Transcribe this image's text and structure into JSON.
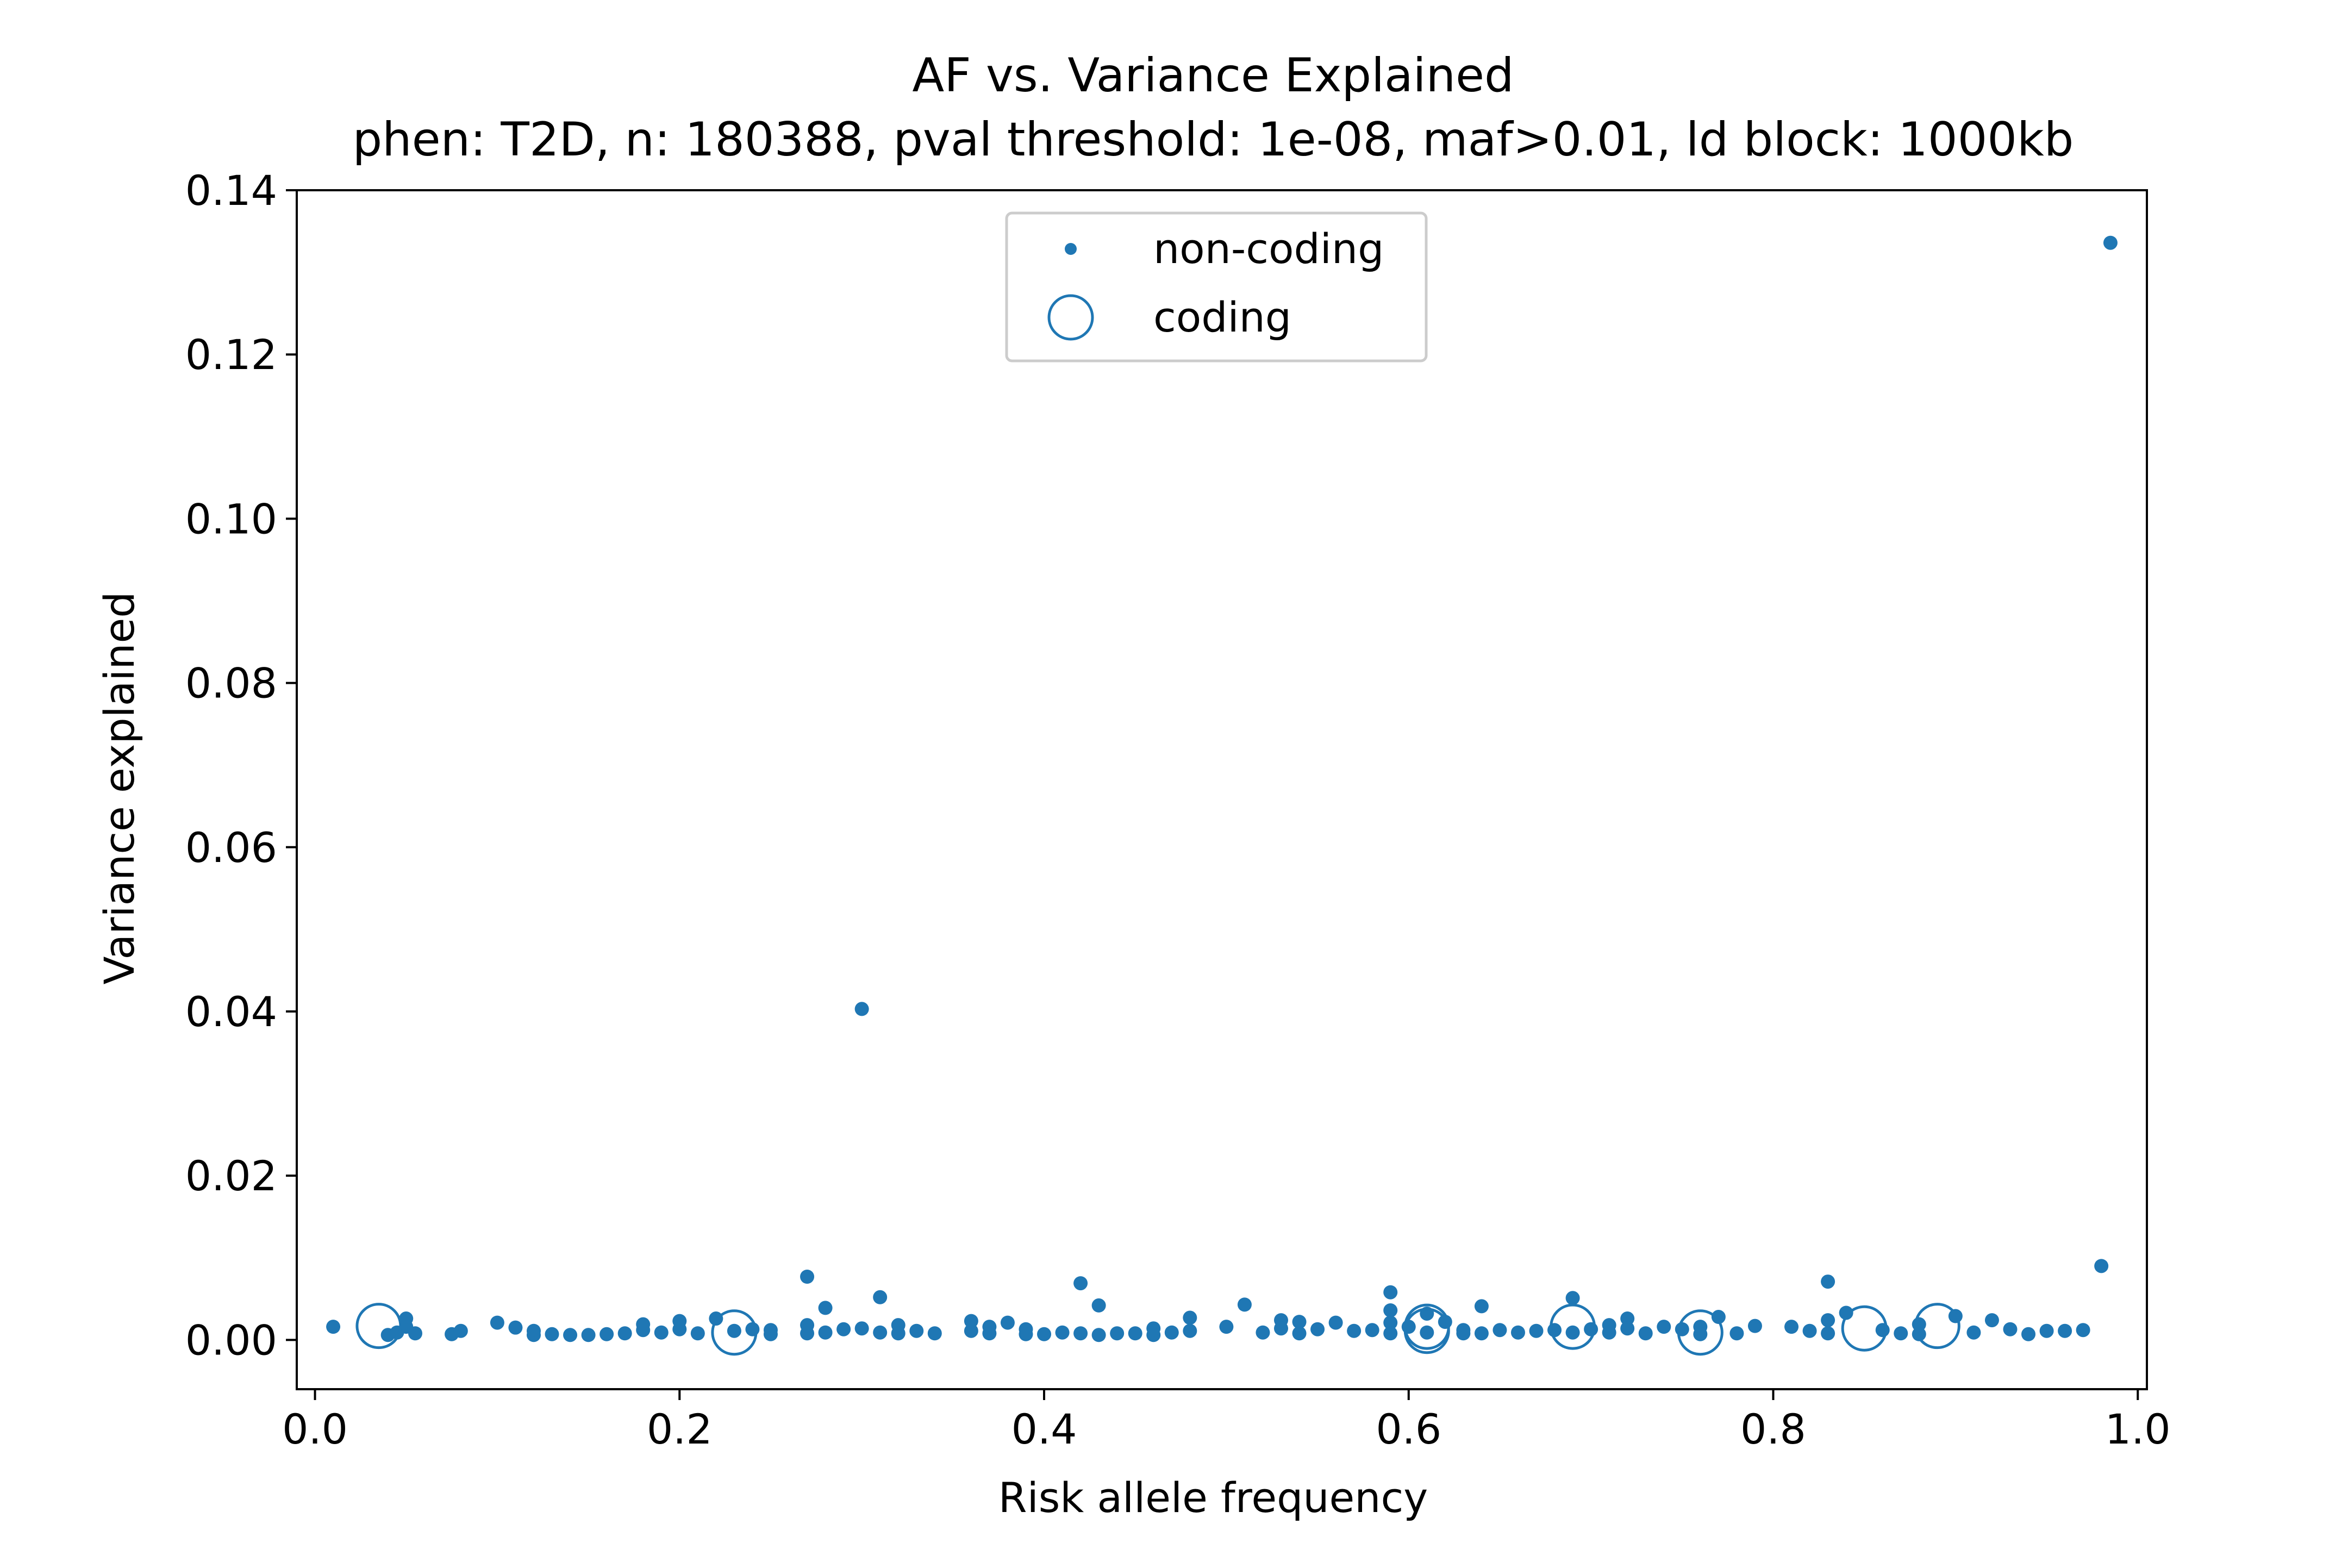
{
  "chart_data": {
    "type": "scatter",
    "title": "AF vs. Variance Explained",
    "subtitle": "phen: T2D, n: 180388, pval threshold: 1e-08, maf>0.01, ld block: 1000kb",
    "xlabel": "Risk allele frequency",
    "ylabel": "Variance explained",
    "xlim": [
      -0.01,
      1.005
    ],
    "ylim": [
      -0.006,
      0.14
    ],
    "xticks": [
      0.0,
      0.2,
      0.4,
      0.6,
      0.8,
      1.0
    ],
    "xtick_labels": [
      "0.0",
      "0.2",
      "0.4",
      "0.6",
      "0.8",
      "1.0"
    ],
    "yticks": [
      0.0,
      0.02,
      0.04,
      0.06,
      0.08,
      0.1,
      0.12,
      0.14
    ],
    "ytick_labels": [
      "0.00",
      "0.02",
      "0.04",
      "0.06",
      "0.08",
      "0.10",
      "0.12",
      "0.14"
    ],
    "grid": false,
    "legend_position": "top-center",
    "color": "#1f77b4",
    "series": [
      {
        "name": "non-coding",
        "marker": "small-filled-dot",
        "points": [
          [
            0.01,
            0.0016
          ],
          [
            0.04,
            0.0006
          ],
          [
            0.045,
            0.0009
          ],
          [
            0.05,
            0.0026
          ],
          [
            0.05,
            0.0016
          ],
          [
            0.055,
            0.0008
          ],
          [
            0.075,
            0.0007
          ],
          [
            0.08,
            0.0011
          ],
          [
            0.1,
            0.0021
          ],
          [
            0.11,
            0.0015
          ],
          [
            0.12,
            0.0011
          ],
          [
            0.12,
            0.0006
          ],
          [
            0.13,
            0.0007
          ],
          [
            0.14,
            0.0006
          ],
          [
            0.15,
            0.0006
          ],
          [
            0.16,
            0.0007
          ],
          [
            0.17,
            0.0008
          ],
          [
            0.18,
            0.0012
          ],
          [
            0.18,
            0.0019
          ],
          [
            0.19,
            0.0009
          ],
          [
            0.2,
            0.0023
          ],
          [
            0.2,
            0.0013
          ],
          [
            0.21,
            0.0008
          ],
          [
            0.22,
            0.0026
          ],
          [
            0.23,
            0.0011
          ],
          [
            0.24,
            0.0013
          ],
          [
            0.25,
            0.0007
          ],
          [
            0.25,
            0.0012
          ],
          [
            0.27,
            0.0077
          ],
          [
            0.27,
            0.0018
          ],
          [
            0.27,
            0.0008
          ],
          [
            0.28,
            0.0039
          ],
          [
            0.28,
            0.0009
          ],
          [
            0.29,
            0.0013
          ],
          [
            0.3,
            0.0403
          ],
          [
            0.3,
            0.0014
          ],
          [
            0.31,
            0.0052
          ],
          [
            0.31,
            0.0009
          ],
          [
            0.32,
            0.0018
          ],
          [
            0.32,
            0.0008
          ],
          [
            0.33,
            0.0011
          ],
          [
            0.34,
            0.0008
          ],
          [
            0.36,
            0.0023
          ],
          [
            0.36,
            0.0011
          ],
          [
            0.37,
            0.0016
          ],
          [
            0.37,
            0.0008
          ],
          [
            0.38,
            0.0021
          ],
          [
            0.39,
            0.0013
          ],
          [
            0.39,
            0.0007
          ],
          [
            0.4,
            0.0007
          ],
          [
            0.41,
            0.0009
          ],
          [
            0.42,
            0.0069
          ],
          [
            0.42,
            0.0008
          ],
          [
            0.43,
            0.0042
          ],
          [
            0.43,
            0.0006
          ],
          [
            0.44,
            0.0008
          ],
          [
            0.45,
            0.0008
          ],
          [
            0.46,
            0.0014
          ],
          [
            0.46,
            0.0006
          ],
          [
            0.47,
            0.0009
          ],
          [
            0.48,
            0.0027
          ],
          [
            0.48,
            0.0011
          ],
          [
            0.5,
            0.0016
          ],
          [
            0.51,
            0.0043
          ],
          [
            0.52,
            0.0009
          ],
          [
            0.53,
            0.0024
          ],
          [
            0.53,
            0.0014
          ],
          [
            0.54,
            0.0008
          ],
          [
            0.54,
            0.0022
          ],
          [
            0.55,
            0.0013
          ],
          [
            0.56,
            0.0021
          ],
          [
            0.57,
            0.0011
          ],
          [
            0.58,
            0.0012
          ],
          [
            0.59,
            0.0058
          ],
          [
            0.59,
            0.0036
          ],
          [
            0.59,
            0.0021
          ],
          [
            0.59,
            0.0008
          ],
          [
            0.6,
            0.0016
          ],
          [
            0.61,
            0.0032
          ],
          [
            0.61,
            0.0009
          ],
          [
            0.62,
            0.0022
          ],
          [
            0.63,
            0.0012
          ],
          [
            0.63,
            0.0008
          ],
          [
            0.64,
            0.0041
          ],
          [
            0.64,
            0.0008
          ],
          [
            0.65,
            0.0012
          ],
          [
            0.66,
            0.0009
          ],
          [
            0.67,
            0.0011
          ],
          [
            0.68,
            0.0012
          ],
          [
            0.69,
            0.0051
          ],
          [
            0.69,
            0.0009
          ],
          [
            0.7,
            0.0013
          ],
          [
            0.71,
            0.0018
          ],
          [
            0.71,
            0.0009
          ],
          [
            0.72,
            0.0026
          ],
          [
            0.72,
            0.0014
          ],
          [
            0.73,
            0.0008
          ],
          [
            0.74,
            0.0016
          ],
          [
            0.75,
            0.0013
          ],
          [
            0.76,
            0.0016
          ],
          [
            0.76,
            0.0007
          ],
          [
            0.77,
            0.0028
          ],
          [
            0.78,
            0.0008
          ],
          [
            0.79,
            0.0017
          ],
          [
            0.81,
            0.0016
          ],
          [
            0.82,
            0.0011
          ],
          [
            0.83,
            0.0071
          ],
          [
            0.83,
            0.0024
          ],
          [
            0.83,
            0.0008
          ],
          [
            0.84,
            0.0033
          ],
          [
            0.86,
            0.0012
          ],
          [
            0.87,
            0.0008
          ],
          [
            0.88,
            0.0019
          ],
          [
            0.88,
            0.0007
          ],
          [
            0.9,
            0.0029
          ],
          [
            0.91,
            0.0009
          ],
          [
            0.92,
            0.0024
          ],
          [
            0.93,
            0.0013
          ],
          [
            0.94,
            0.0007
          ],
          [
            0.95,
            0.0011
          ],
          [
            0.96,
            0.0011
          ],
          [
            0.97,
            0.0012
          ],
          [
            0.98,
            0.009
          ],
          [
            0.985,
            0.1336
          ]
        ]
      },
      {
        "name": "coding",
        "marker": "large-open-circle",
        "points": [
          [
            0.035,
            0.0017
          ],
          [
            0.23,
            0.0009
          ],
          [
            0.61,
            0.0016
          ],
          [
            0.61,
            0.0011
          ],
          [
            0.69,
            0.0016
          ],
          [
            0.76,
            0.0009
          ],
          [
            0.85,
            0.0014
          ],
          [
            0.89,
            0.0017
          ]
        ]
      }
    ]
  }
}
